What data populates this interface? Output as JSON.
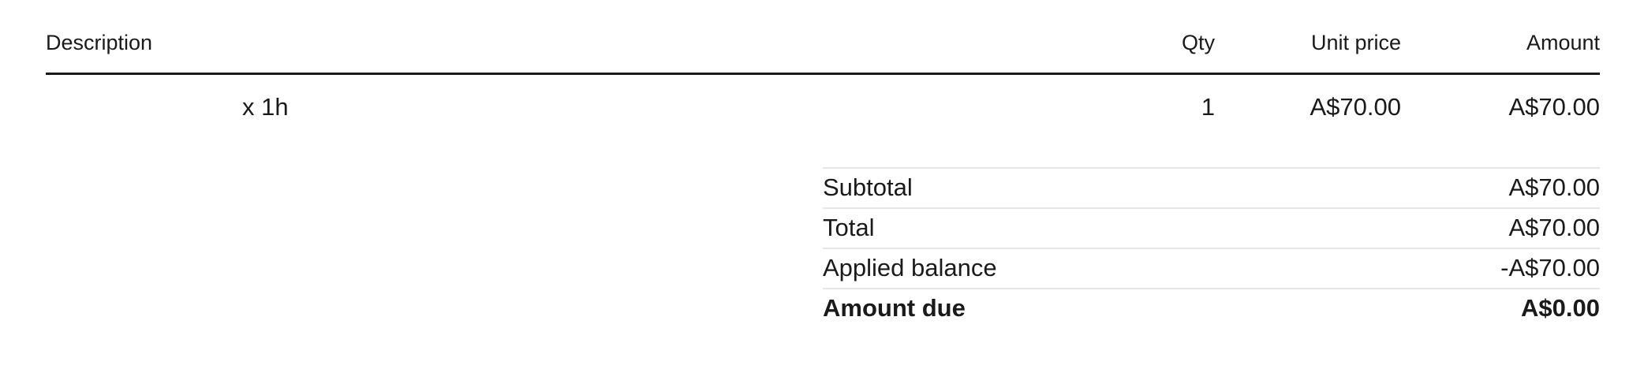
{
  "invoice_table": {
    "headers": {
      "description": "Description",
      "qty": "Qty",
      "unit_price": "Unit price",
      "amount": "Amount"
    },
    "line_items": [
      {
        "description": "x 1h",
        "qty": "1",
        "unit_price": "A$70.00",
        "amount": "A$70.00"
      }
    ]
  },
  "summary": {
    "rows": [
      {
        "label": "Subtotal",
        "value": "A$70.00"
      },
      {
        "label": "Total",
        "value": "A$70.00"
      },
      {
        "label": "Applied balance",
        "value": "-A$70.00"
      },
      {
        "label": "Amount due",
        "value": "A$0.00"
      }
    ]
  },
  "colors": {
    "text": "#1a1a1a",
    "header_rule": "#1a1a1a",
    "divider": "#e6e6e6",
    "background": "#ffffff"
  }
}
